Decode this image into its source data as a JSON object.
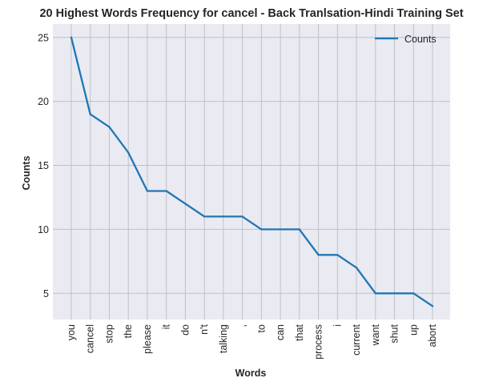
{
  "chart_data": {
    "type": "line",
    "title": "20 Highest Words Frequency for cancel - Back Tranlsation-Hindi Training Set",
    "xlabel": "Words",
    "ylabel": "Counts",
    "categories": [
      "you",
      "cancel",
      "stop",
      "the",
      "please",
      "it",
      "do",
      "n't",
      "talking",
      ",",
      "to",
      "can",
      "that",
      "process",
      "i",
      "current",
      "want",
      "shut",
      "up",
      "abort"
    ],
    "series": [
      {
        "name": "Counts",
        "values": [
          25,
          19,
          18,
          16,
          13,
          13,
          12,
          11,
          11,
          11,
          10,
          10,
          10,
          8,
          8,
          7,
          5,
          5,
          5,
          4
        ]
      }
    ],
    "yticks": [
      5,
      10,
      15,
      20,
      25
    ],
    "ylim": [
      2.95,
      26.05
    ],
    "grid": true,
    "legend_position": "top-right",
    "colors": {
      "line": "#1f77b4",
      "plot_background": "#eaeaf2",
      "grid": "#c0c0c8"
    }
  }
}
